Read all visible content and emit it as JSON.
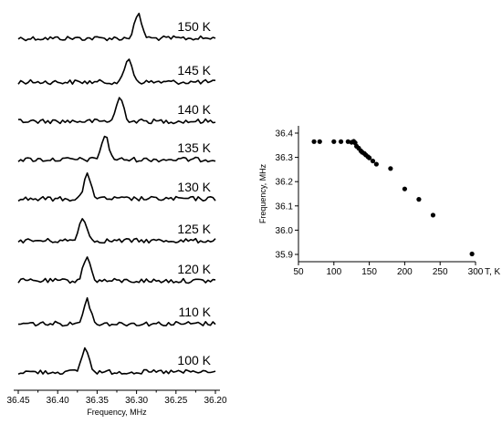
{
  "chart_data": [
    {
      "type": "line",
      "xlabel": "Frequency, MHz",
      "xlim": [
        36.45,
        36.2
      ],
      "x_reversed": true,
      "x_ticks": [
        "36.45",
        "36.40",
        "36.35",
        "36.30",
        "36.25",
        "36.20"
      ],
      "series": [
        {
          "name": "150 K",
          "peak_center": 36.298
        },
        {
          "name": "145 K",
          "peak_center": 36.31
        },
        {
          "name": "140 K",
          "peak_center": 36.321
        },
        {
          "name": "135 K",
          "peak_center": 36.34
        },
        {
          "name": "130 K",
          "peak_center": 36.362
        },
        {
          "name": "125 K",
          "peak_center": 36.368
        },
        {
          "name": "120 K",
          "peak_center": 36.363
        },
        {
          "name": "110 K",
          "peak_center": 36.363
        },
        {
          "name": "100 K",
          "peak_center": 36.365
        }
      ]
    },
    {
      "type": "scatter",
      "xlabel": "T, K",
      "ylabel": "Frequency, MHz",
      "xlim": [
        50,
        300
      ],
      "ylim": [
        35.87,
        36.43
      ],
      "x_ticks": [
        "50",
        "100",
        "150",
        "200",
        "250",
        "300"
      ],
      "y_ticks": [
        "35.9",
        "36.0",
        "36.1",
        "36.2",
        "36.3",
        "36.4"
      ],
      "points": [
        {
          "x": 72,
          "y": 36.365
        },
        {
          "x": 80,
          "y": 36.365
        },
        {
          "x": 100,
          "y": 36.365
        },
        {
          "x": 110,
          "y": 36.365
        },
        {
          "x": 120,
          "y": 36.365
        },
        {
          "x": 125,
          "y": 36.362
        },
        {
          "x": 128,
          "y": 36.366
        },
        {
          "x": 130,
          "y": 36.36
        },
        {
          "x": 132,
          "y": 36.346
        },
        {
          "x": 135,
          "y": 36.338
        },
        {
          "x": 138,
          "y": 36.327
        },
        {
          "x": 140,
          "y": 36.321
        },
        {
          "x": 143,
          "y": 36.316
        },
        {
          "x": 145,
          "y": 36.31
        },
        {
          "x": 148,
          "y": 36.303
        },
        {
          "x": 150,
          "y": 36.298
        },
        {
          "x": 155,
          "y": 36.285
        },
        {
          "x": 160,
          "y": 36.272
        },
        {
          "x": 180,
          "y": 36.254
        },
        {
          "x": 200,
          "y": 36.17
        },
        {
          "x": 220,
          "y": 36.127
        },
        {
          "x": 240,
          "y": 36.062
        },
        {
          "x": 295,
          "y": 35.902
        }
      ]
    }
  ]
}
